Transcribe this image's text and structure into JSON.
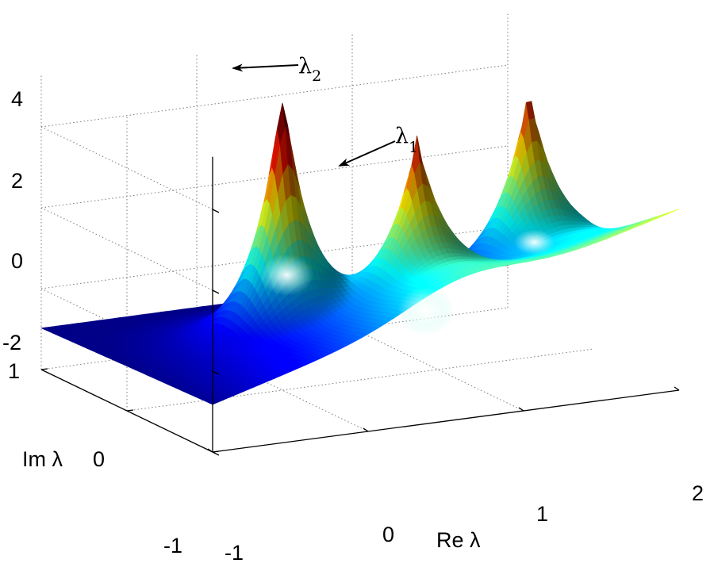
{
  "chart_data": {
    "type": "surface",
    "title": "",
    "xlabel": "Re λ",
    "ylabel": "Im λ",
    "zlabel": "",
    "xlim": [
      -1,
      2
    ],
    "ylim": [
      -1,
      1
    ],
    "zlim": [
      -2,
      5
    ],
    "x_ticks": [
      "-1",
      "0",
      "1",
      "2"
    ],
    "y_ticks": [
      "-1",
      "0",
      "1"
    ],
    "z_ticks": [
      "-2",
      "0",
      "2",
      "4"
    ],
    "grid": true,
    "colormap": "jet",
    "peaks": [
      {
        "x": 0.0,
        "y": 0.0,
        "height": 5.0,
        "label": "λ",
        "sub": "2"
      },
      {
        "x": 0.7,
        "y": -0.3,
        "height": 2.5,
        "label": "λ",
        "sub": "1"
      },
      {
        "x": 1.75,
        "y": 0.3,
        "height": 3.0
      }
    ]
  }
}
